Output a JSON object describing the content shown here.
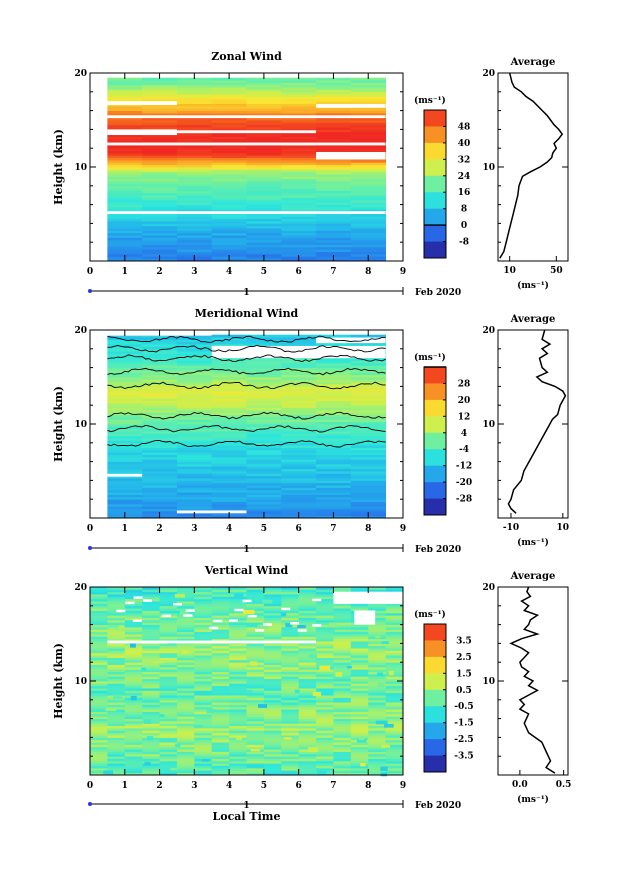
{
  "chart_data": [
    {
      "type": "heatmap",
      "title": "Zonal Wind",
      "xlabel": "",
      "ylabel": "Height (km)",
      "x_ticks": [
        "0",
        "1",
        "2",
        "3",
        "4",
        "5",
        "6",
        "7",
        "8",
        "9"
      ],
      "y_ticks": [
        "10",
        "20"
      ],
      "xlim": [
        0,
        9
      ],
      "ylim": [
        0,
        20
      ],
      "date_axis_label": "1",
      "date_label": "Feb 2020",
      "colorbar": {
        "unit_label": "(ms⁻¹)",
        "ticks": [
          "48",
          "40",
          "32",
          "24",
          "16",
          "8",
          "0",
          "-8"
        ],
        "range": [
          -12,
          52
        ],
        "zero_line": 0
      },
      "profile_by_height": [
        [
          0.5,
          2
        ],
        [
          1.5,
          4
        ],
        [
          2.5,
          5
        ],
        [
          3.5,
          8
        ],
        [
          5,
          12
        ],
        [
          6.5,
          16
        ],
        [
          8,
          19
        ],
        [
          9.5,
          24
        ],
        [
          10.5,
          40
        ],
        [
          11.5,
          52
        ],
        [
          13.5,
          52
        ],
        [
          15,
          46
        ],
        [
          16,
          40
        ],
        [
          17,
          34
        ],
        [
          18,
          26
        ],
        [
          19,
          20
        ]
      ],
      "data_gaps": [
        {
          "x": [
            0.5,
            8.5
          ],
          "y": [
            5.0,
            5.3
          ]
        },
        {
          "x": [
            0.5,
            8.5
          ],
          "y": [
            12.3,
            12.6
          ]
        },
        {
          "x": [
            0.5,
            2.5
          ],
          "y": [
            13.4,
            14.0
          ]
        },
        {
          "x": [
            2.5,
            6.5
          ],
          "y": [
            13.6,
            13.9
          ]
        },
        {
          "x": [
            6.5,
            8.5
          ],
          "y": [
            10.8,
            11.6
          ]
        },
        {
          "x": [
            0.5,
            8.5
          ],
          "y": [
            15.2,
            15.5
          ]
        },
        {
          "x": [
            6.5,
            8.5
          ],
          "y": [
            16.3,
            16.7
          ]
        },
        {
          "x": [
            0.5,
            2.5
          ],
          "y": [
            16.6,
            17.0
          ]
        }
      ],
      "average_panel": {
        "title": "Average",
        "xlabel": "(ms⁻¹)",
        "x_ticks": [
          "10",
          "50"
        ],
        "xlim": [
          0,
          60
        ],
        "y_ticks": [
          "10",
          "20"
        ],
        "ylim": [
          0,
          20
        ],
        "profile": [
          [
            1.5,
            0.3
          ],
          [
            5,
            1.0
          ],
          [
            7,
            2.0
          ],
          [
            9,
            3.0
          ],
          [
            11,
            4.0
          ],
          [
            13,
            5.0
          ],
          [
            15,
            6.0
          ],
          [
            17,
            7.0
          ],
          [
            18,
            8.0
          ],
          [
            21,
            9.0
          ],
          [
            28,
            9.5
          ],
          [
            36,
            10.0
          ],
          [
            42,
            10.5
          ],
          [
            46,
            11.0
          ],
          [
            47,
            11.5
          ],
          [
            50,
            12.0
          ],
          [
            48,
            12.5
          ],
          [
            52,
            13.0
          ],
          [
            55,
            13.5
          ],
          [
            52,
            14.0
          ],
          [
            48,
            14.5
          ],
          [
            45,
            15.0
          ],
          [
            42,
            15.5
          ],
          [
            38,
            16.0
          ],
          [
            30,
            17.0
          ],
          [
            24,
            17.5
          ],
          [
            20,
            18.0
          ],
          [
            14,
            18.5
          ],
          [
            12,
            19.0
          ],
          [
            10,
            20.0
          ]
        ]
      }
    },
    {
      "type": "heatmap",
      "title": "Meridional Wind",
      "xlabel": "",
      "ylabel": "Height (km)",
      "x_ticks": [
        "0",
        "1",
        "2",
        "3",
        "4",
        "5",
        "6",
        "7",
        "8",
        "9"
      ],
      "y_ticks": [
        "10",
        "20"
      ],
      "xlim": [
        0,
        9
      ],
      "ylim": [
        0,
        20
      ],
      "date_axis_label": "1",
      "date_label": "Feb 2020",
      "colorbar": {
        "unit_label": "(ms⁻¹)",
        "ticks": [
          "28",
          "20",
          "12",
          "4",
          "-4",
          "-12",
          "-20",
          "-28"
        ],
        "range": [
          -32,
          36
        ],
        "zero_line": 0
      },
      "profile_by_height": [
        [
          0.5,
          -16
        ],
        [
          1.5,
          -14
        ],
        [
          3,
          -12
        ],
        [
          4.5,
          -10
        ],
        [
          6,
          -8
        ],
        [
          7.5,
          -6
        ],
        [
          9,
          -2
        ],
        [
          10.5,
          2
        ],
        [
          11.5,
          6
        ],
        [
          12.5,
          10
        ],
        [
          13.5,
          12
        ],
        [
          14.5,
          6
        ],
        [
          15.5,
          2
        ],
        [
          16.5,
          -2
        ],
        [
          17.5,
          -4
        ],
        [
          18.5,
          -6
        ],
        [
          19.2,
          -9
        ]
      ],
      "data_gaps": [
        {
          "x": [
            0.5,
            3.5
          ],
          "y": [
            19.4,
            19.7
          ]
        },
        {
          "x": [
            3.5,
            8.5
          ],
          "y": [
            17.0,
            18.3
          ]
        },
        {
          "x": [
            6.5,
            8.5
          ],
          "y": [
            18.6,
            19.2
          ]
        },
        {
          "x": [
            0.5,
            1.5
          ],
          "y": [
            4.4,
            4.7
          ]
        },
        {
          "x": [
            2.5,
            4.5
          ],
          "y": [
            0.5,
            0.8
          ]
        }
      ],
      "zero_contour_heights_km": [
        19.0,
        18.0,
        17.0,
        15.6,
        14.1,
        10.9,
        9.5,
        7.9
      ],
      "average_panel": {
        "title": "Average",
        "xlabel": "(ms⁻¹)",
        "x_ticks": [
          "-10",
          "10"
        ],
        "xlim": [
          -15,
          12
        ],
        "y_ticks": [
          "10",
          "20"
        ],
        "ylim": [
          0,
          20
        ],
        "profile": [
          [
            -8,
            0.5
          ],
          [
            -10,
            1.0
          ],
          [
            -11,
            1.5
          ],
          [
            -10,
            2.0
          ],
          [
            -9,
            3.0
          ],
          [
            -6,
            4.0
          ],
          [
            -5,
            5.0
          ],
          [
            -3,
            6.0
          ],
          [
            -1,
            7.0
          ],
          [
            1,
            8.0
          ],
          [
            3,
            9.0
          ],
          [
            5,
            10.0
          ],
          [
            6,
            10.5
          ],
          [
            8,
            11.0
          ],
          [
            9,
            12.0
          ],
          [
            11,
            13.0
          ],
          [
            10,
            13.5
          ],
          [
            7,
            14.0
          ],
          [
            2,
            14.5
          ],
          [
            0,
            15.0
          ],
          [
            4,
            15.5
          ],
          [
            2,
            16.0
          ],
          [
            1,
            17.0
          ],
          [
            4,
            17.5
          ],
          [
            2,
            18.0
          ],
          [
            5,
            18.5
          ],
          [
            2,
            19.0
          ],
          [
            3,
            20.0
          ]
        ]
      }
    },
    {
      "type": "heatmap",
      "title": "Vertical Wind",
      "xlabel": "Local Time",
      "ylabel": "Height (km)",
      "x_ticks": [
        "0",
        "1",
        "2",
        "3",
        "4",
        "5",
        "6",
        "7",
        "8",
        "9"
      ],
      "y_ticks": [
        "10",
        "20"
      ],
      "xlim": [
        0,
        9
      ],
      "ylim": [
        0,
        20
      ],
      "date_axis_label": "1",
      "date_label": "Feb 2020",
      "colorbar": {
        "unit_label": "(ms⁻¹)",
        "ticks": [
          "3.5",
          "2.5",
          "1.5",
          "0.5",
          "-0.5",
          "-1.5",
          "-2.5",
          "-3.5"
        ],
        "range": [
          -4,
          4
        ],
        "zero_line": null
      },
      "profile_by_height": [
        [
          1,
          -0.3
        ],
        [
          3,
          0.1
        ],
        [
          5,
          0.3
        ],
        [
          7,
          0.0
        ],
        [
          9,
          -0.2
        ],
        [
          11,
          0.1
        ],
        [
          13,
          0.3
        ],
        [
          15,
          0.0
        ],
        [
          17,
          -0.1
        ],
        [
          19,
          -0.5
        ]
      ],
      "data_gaps": [
        {
          "x": [
            7.0,
            9.0
          ],
          "y": [
            18.2,
            19.5
          ]
        },
        {
          "x": [
            7.6,
            8.2
          ],
          "y": [
            16.0,
            17.5
          ]
        },
        {
          "x": [
            0.5,
            6.5
          ],
          "y": [
            14.0,
            14.3
          ]
        }
      ],
      "average_panel": {
        "title": "Average",
        "xlabel": "(ms⁻¹)",
        "x_ticks": [
          "0.0",
          "0.5"
        ],
        "xlim": [
          -0.25,
          0.55
        ],
        "y_ticks": [
          "10",
          "20"
        ],
        "ylim": [
          0,
          20
        ],
        "profile": [
          [
            0.4,
            0.2
          ],
          [
            0.3,
            0.8
          ],
          [
            0.35,
            1.5
          ],
          [
            0.3,
            2.5
          ],
          [
            0.25,
            3.5
          ],
          [
            0.1,
            4.5
          ],
          [
            0.05,
            5.5
          ],
          [
            0.1,
            6.5
          ],
          [
            0.0,
            7.0
          ],
          [
            0.05,
            7.5
          ],
          [
            0.0,
            8.0
          ],
          [
            0.1,
            8.5
          ],
          [
            0.2,
            9.0
          ],
          [
            0.1,
            9.5
          ],
          [
            0.15,
            10.0
          ],
          [
            0.05,
            10.5
          ],
          [
            0.1,
            11.0
          ],
          [
            0.02,
            11.5
          ],
          [
            0.0,
            12.0
          ],
          [
            0.05,
            12.5
          ],
          [
            0.1,
            13.0
          ],
          [
            0.02,
            13.5
          ],
          [
            -0.1,
            14.0
          ],
          [
            0.02,
            14.5
          ],
          [
            0.2,
            15.0
          ],
          [
            0.05,
            15.5
          ],
          [
            0.1,
            16.0
          ],
          [
            0.12,
            16.5
          ],
          [
            0.2,
            17.0
          ],
          [
            0.05,
            17.5
          ],
          [
            0.1,
            18.0
          ],
          [
            0.02,
            18.5
          ],
          [
            0.12,
            19.0
          ],
          [
            0.08,
            19.5
          ],
          [
            0.1,
            20.0
          ]
        ]
      }
    }
  ]
}
